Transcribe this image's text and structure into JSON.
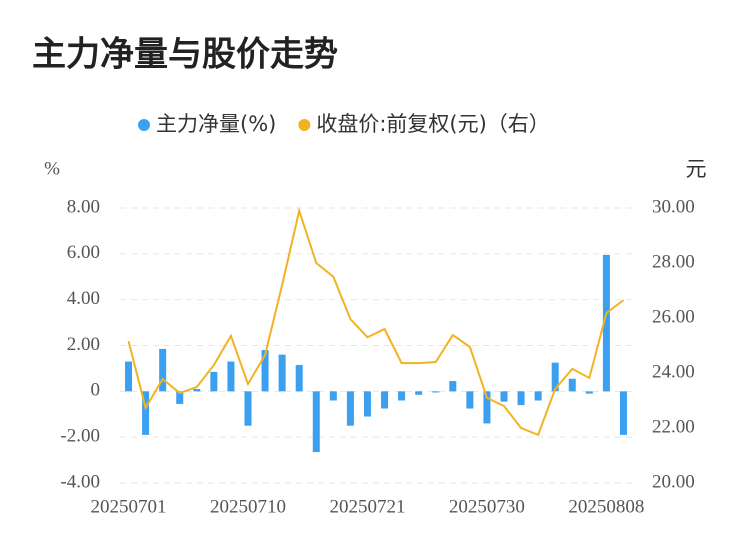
{
  "chart_data": {
    "type": "bar_line",
    "title": "主力净量与股价走势",
    "y_unit": "%",
    "y2_unit": "元",
    "categories": [
      "20250701",
      null,
      null,
      null,
      null,
      null,
      null,
      "20250710",
      null,
      null,
      null,
      null,
      null,
      null,
      "20250721",
      null,
      null,
      null,
      null,
      null,
      null,
      "20250730",
      null,
      null,
      null,
      null,
      null,
      null,
      "20250808",
      null
    ],
    "series": [
      {
        "name": "主力净量(%)",
        "type": "bar",
        "color": "#3aa0ef",
        "axis": "y",
        "values": [
          1.3,
          -1.9,
          1.85,
          -0.55,
          0.1,
          0.85,
          1.3,
          -1.5,
          1.8,
          1.6,
          1.15,
          -2.65,
          -0.4,
          -1.5,
          -1.1,
          -0.75,
          -0.4,
          -0.15,
          -0.05,
          0.45,
          -0.75,
          -1.4,
          -0.45,
          -0.6,
          -0.4,
          1.25,
          0.55,
          -0.1,
          5.95,
          -1.9
        ]
      },
      {
        "name": "收盘价:前复权(元)（右）",
        "type": "line",
        "color": "#f2b322",
        "axis": "y2",
        "values": [
          25.16,
          22.73,
          23.78,
          23.27,
          23.49,
          24.29,
          25.35,
          23.6,
          24.65,
          27.2,
          29.9,
          28.0,
          27.5,
          25.96,
          25.3,
          25.6,
          24.36,
          24.36,
          24.4,
          25.38,
          24.95,
          23.1,
          22.8,
          22.0,
          21.75,
          23.42,
          24.15,
          23.82,
          26.18,
          26.65
        ]
      }
    ],
    "ylim": [
      -4,
      8
    ],
    "yticks": [
      {
        "value": -4,
        "label": "-4.00"
      },
      {
        "value": -2,
        "label": "-2.00"
      },
      0,
      {
        "value": 2,
        "label": "2.00"
      },
      {
        "value": 4,
        "label": "4.00"
      },
      {
        "value": 6,
        "label": "6.00"
      },
      {
        "value": 8,
        "label": "8.00"
      }
    ],
    "y2lim": [
      20,
      30
    ],
    "y2ticks": [
      {
        "value": 20,
        "label": "20.00"
      },
      {
        "value": 22,
        "label": "22.00"
      },
      {
        "value": 24,
        "label": "24.00"
      },
      {
        "value": 26,
        "label": "26.00"
      },
      {
        "value": 28,
        "label": "28.00"
      },
      {
        "value": 30,
        "label": "30.00"
      }
    ],
    "grid": true
  }
}
